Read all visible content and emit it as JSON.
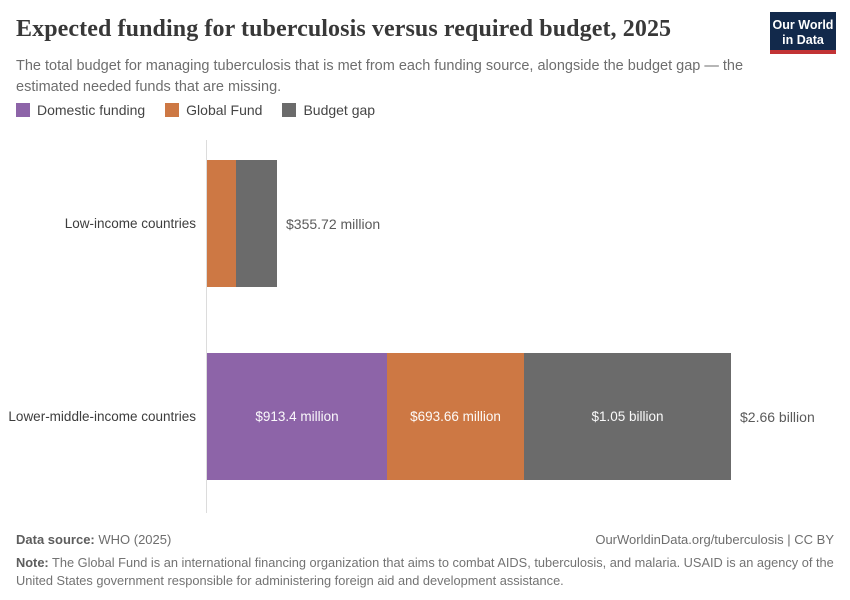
{
  "header": {
    "title": "Expected funding for tuberculosis versus required budget, 2025",
    "subtitle": "The total budget for managing tuberculosis that is met from each funding source, alongside the budget gap — the estimated needed funds that are missing.",
    "logo": {
      "line1": "Our World",
      "line2": "in Data"
    }
  },
  "colors": {
    "domestic_funding": "#8d64a8",
    "global_fund": "#cd7844",
    "budget_gap": "#6b6b6b",
    "logo_bg": "#12294b",
    "logo_stripe": "#c23335",
    "axis_line": "#dcdcdc"
  },
  "legend": [
    {
      "label": "Domestic funding",
      "color": "#8d64a8"
    },
    {
      "label": "Global Fund",
      "color": "#cd7844"
    },
    {
      "label": "Budget gap",
      "color": "#6b6b6b"
    }
  ],
  "chart_data": {
    "type": "bar",
    "orientation": "horizontal",
    "stacked": true,
    "title": "Expected funding for tuberculosis versus required budget, 2025",
    "unit": "US dollars",
    "xlim_millions": [
      0,
      2660
    ],
    "grid": false,
    "legend_position": "top-left",
    "series_names": [
      "Domestic funding",
      "Global Fund",
      "Budget gap"
    ],
    "categories": [
      "Low-income countries",
      "Lower-middle-income countries"
    ],
    "rows": [
      {
        "category": "Low-income countries",
        "total_label": "$355.72 million",
        "total_millions": 355.72,
        "segments": [
          {
            "series": "Domestic funding",
            "color": "#8d64a8",
            "value_millions": 0,
            "label": ""
          },
          {
            "series": "Global Fund",
            "color": "#cd7844",
            "value_millions": 147,
            "label": ""
          },
          {
            "series": "Budget gap",
            "color": "#6b6b6b",
            "value_millions": 208.7,
            "label": ""
          }
        ]
      },
      {
        "category": "Lower-middle-income countries",
        "total_label": "$2.66 billion",
        "total_millions": 2657.06,
        "segments": [
          {
            "series": "Domestic funding",
            "color": "#8d64a8",
            "value_millions": 913.4,
            "label": "$913.4 million"
          },
          {
            "series": "Global Fund",
            "color": "#cd7844",
            "value_millions": 693.66,
            "label": "$693.66 million"
          },
          {
            "series": "Budget gap",
            "color": "#6b6b6b",
            "value_millions": 1050,
            "label": "$1.05 billion"
          }
        ]
      }
    ]
  },
  "footer": {
    "source_label": "Data source:",
    "source_value": " WHO (2025)",
    "link": "OurWorldinData.org/tuberculosis | CC BY",
    "note_label": "Note:",
    "note_value": " The Global Fund is an international financing organization that aims to combat AIDS, tuberculosis, and malaria. USAID is an agency of the United States government responsible for administering foreign aid and development assistance."
  }
}
